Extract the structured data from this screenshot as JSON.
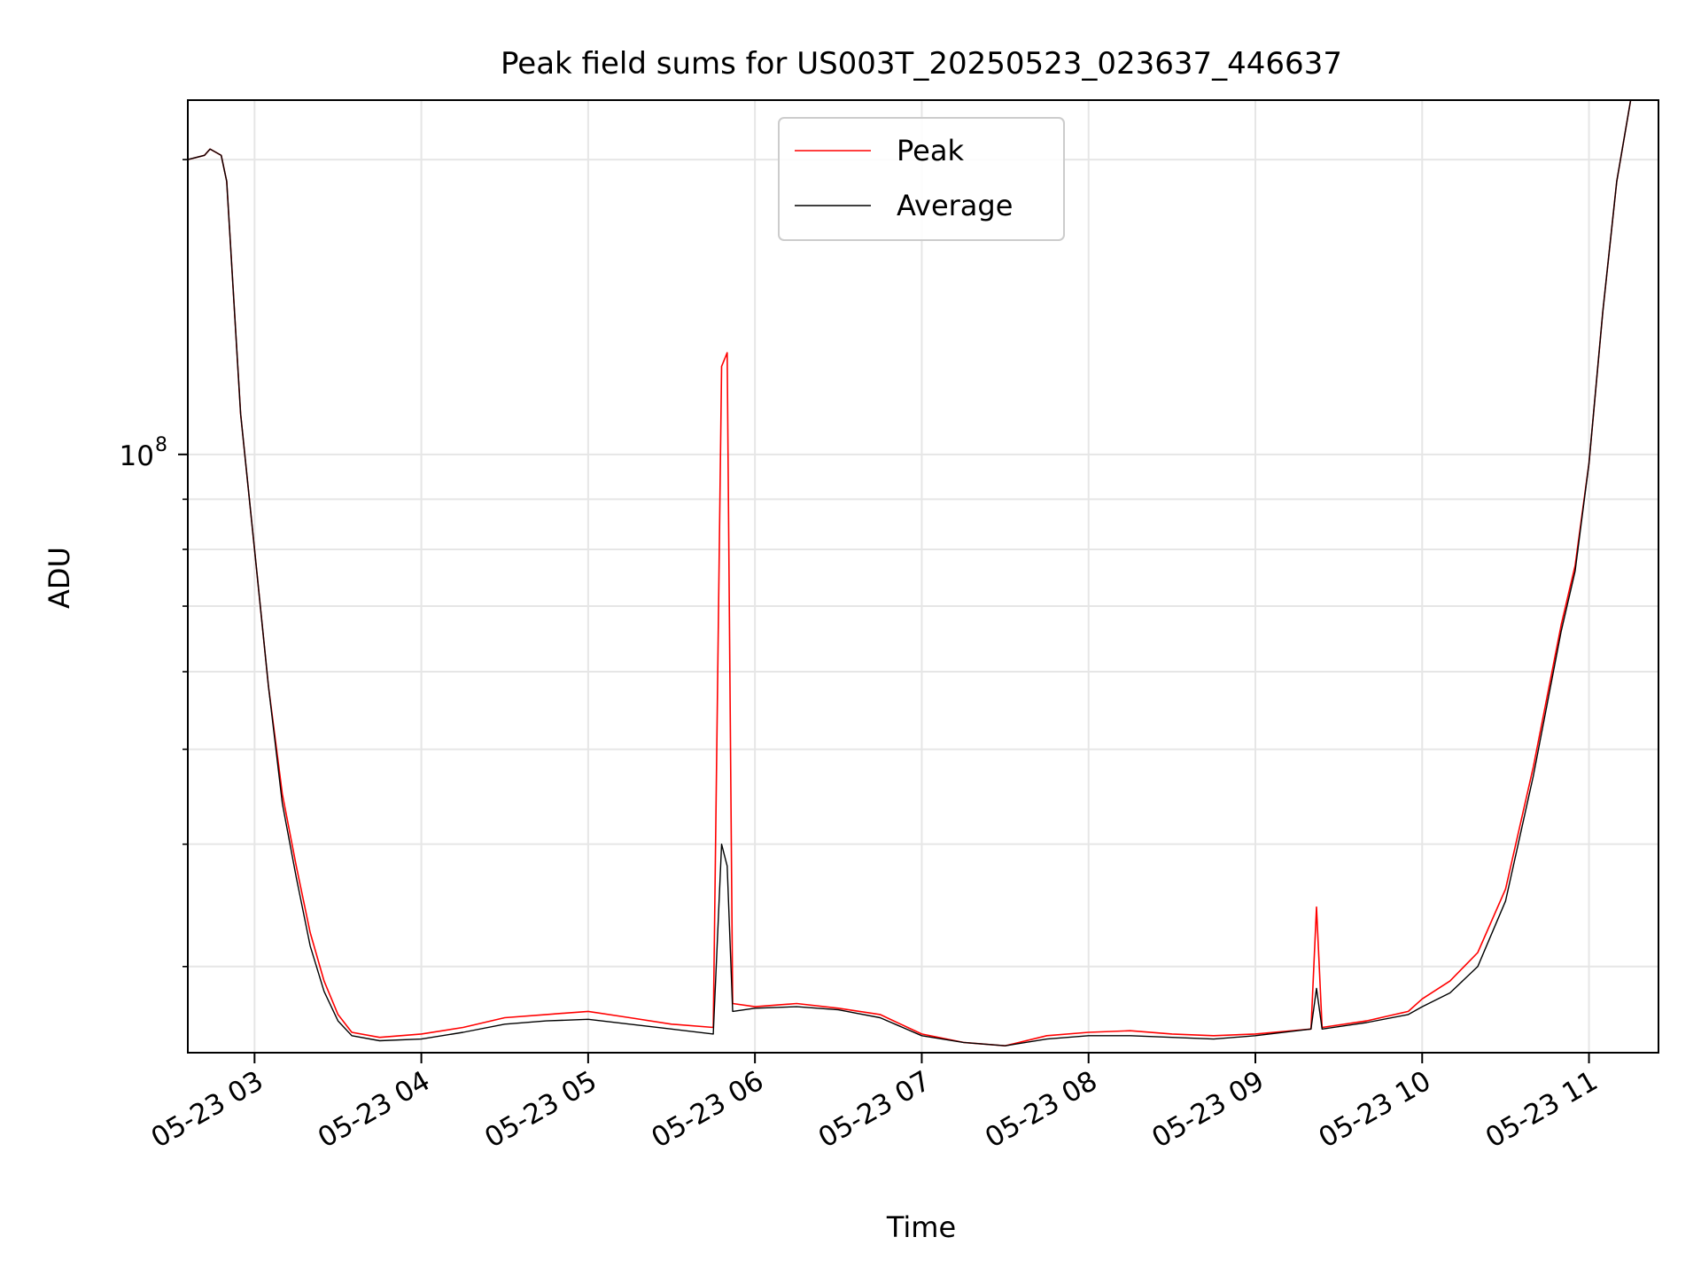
{
  "chart_data": {
    "type": "line",
    "title": "Peak field sums for US003T_20250523_023637_446637",
    "xlabel": "Time",
    "ylabel": "ADU",
    "y_scale": "log",
    "y_major_label": {
      "base": "10",
      "exp": "8",
      "value": 100000000
    },
    "y_minor_ticks": [
      30000000,
      40000000,
      50000000,
      60000000,
      70000000,
      80000000,
      90000000,
      200000000
    ],
    "ylim": [
      24500000,
      230000000
    ],
    "xlim": [
      "2025-05-23 02:36",
      "2025-05-23 11:25"
    ],
    "x_ticks": [
      {
        "value": "2025-05-23 03:00",
        "label": "05-23 03"
      },
      {
        "value": "2025-05-23 04:00",
        "label": "05-23 04"
      },
      {
        "value": "2025-05-23 05:00",
        "label": "05-23 05"
      },
      {
        "value": "2025-05-23 06:00",
        "label": "05-23 06"
      },
      {
        "value": "2025-05-23 07:00",
        "label": "05-23 07"
      },
      {
        "value": "2025-05-23 08:00",
        "label": "05-23 08"
      },
      {
        "value": "2025-05-23 09:00",
        "label": "05-23 09"
      },
      {
        "value": "2025-05-23 10:00",
        "label": "05-23 10"
      },
      {
        "value": "2025-05-23 11:00",
        "label": "05-23 11"
      }
    ],
    "grid": true,
    "legend_position": "upper center",
    "series": [
      {
        "name": "Peak",
        "color": "#ff0000",
        "points": [
          [
            "2025-05-23 02:36",
            200000000
          ],
          [
            "2025-05-23 02:42",
            202000000
          ],
          [
            "2025-05-23 02:44",
            205000000
          ],
          [
            "2025-05-23 02:48",
            202000000
          ],
          [
            "2025-05-23 02:50",
            190000000
          ],
          [
            "2025-05-23 02:55",
            110000000
          ],
          [
            "2025-05-23 03:00",
            80000000
          ],
          [
            "2025-05-23 03:05",
            58000000
          ],
          [
            "2025-05-23 03:10",
            45000000
          ],
          [
            "2025-05-23 03:15",
            38000000
          ],
          [
            "2025-05-23 03:20",
            32500000
          ],
          [
            "2025-05-23 03:25",
            29000000
          ],
          [
            "2025-05-23 03:30",
            26800000
          ],
          [
            "2025-05-23 03:35",
            25700000
          ],
          [
            "2025-05-23 03:45",
            25400000
          ],
          [
            "2025-05-23 04:00",
            25600000
          ],
          [
            "2025-05-23 04:15",
            26000000
          ],
          [
            "2025-05-23 04:30",
            26600000
          ],
          [
            "2025-05-23 04:45",
            26800000
          ],
          [
            "2025-05-23 05:00",
            27000000
          ],
          [
            "2025-05-23 05:15",
            26600000
          ],
          [
            "2025-05-23 05:30",
            26200000
          ],
          [
            "2025-05-23 05:45",
            26000000
          ],
          [
            "2025-05-23 05:48",
            123000000
          ],
          [
            "2025-05-23 05:50",
            127000000
          ],
          [
            "2025-05-23 05:52",
            27500000
          ],
          [
            "2025-05-23 06:00",
            27300000
          ],
          [
            "2025-05-23 06:15",
            27500000
          ],
          [
            "2025-05-23 06:30",
            27200000
          ],
          [
            "2025-05-23 06:45",
            26800000
          ],
          [
            "2025-05-23 07:00",
            25600000
          ],
          [
            "2025-05-23 07:15",
            25100000
          ],
          [
            "2025-05-23 07:30",
            24900000
          ],
          [
            "2025-05-23 07:45",
            25500000
          ],
          [
            "2025-05-23 08:00",
            25700000
          ],
          [
            "2025-05-23 08:15",
            25800000
          ],
          [
            "2025-05-23 08:30",
            25600000
          ],
          [
            "2025-05-23 08:45",
            25500000
          ],
          [
            "2025-05-23 09:00",
            25600000
          ],
          [
            "2025-05-23 09:20",
            25900000
          ],
          [
            "2025-05-23 09:22",
            34500000
          ],
          [
            "2025-05-23 09:24",
            26000000
          ],
          [
            "2025-05-23 09:40",
            26400000
          ],
          [
            "2025-05-23 09:55",
            27000000
          ],
          [
            "2025-05-23 10:00",
            27800000
          ],
          [
            "2025-05-23 10:10",
            29000000
          ],
          [
            "2025-05-23 10:20",
            31000000
          ],
          [
            "2025-05-23 10:30",
            36000000
          ],
          [
            "2025-05-23 10:40",
            48000000
          ],
          [
            "2025-05-23 10:50",
            67000000
          ],
          [
            "2025-05-23 10:55",
            77000000
          ],
          [
            "2025-05-23 11:00",
            98000000
          ],
          [
            "2025-05-23 11:05",
            140000000
          ],
          [
            "2025-05-23 11:10",
            190000000
          ],
          [
            "2025-05-23 11:15",
            230000000
          ]
        ]
      },
      {
        "name": "Average",
        "color": "#000000",
        "points": [
          [
            "2025-05-23 02:36",
            200000000
          ],
          [
            "2025-05-23 02:42",
            202000000
          ],
          [
            "2025-05-23 02:44",
            205000000
          ],
          [
            "2025-05-23 02:48",
            202000000
          ],
          [
            "2025-05-23 02:50",
            190000000
          ],
          [
            "2025-05-23 02:55",
            110000000
          ],
          [
            "2025-05-23 03:00",
            80000000
          ],
          [
            "2025-05-23 03:05",
            58000000
          ],
          [
            "2025-05-23 03:10",
            44000000
          ],
          [
            "2025-05-23 03:15",
            37000000
          ],
          [
            "2025-05-23 03:20",
            31500000
          ],
          [
            "2025-05-23 03:25",
            28300000
          ],
          [
            "2025-05-23 03:30",
            26400000
          ],
          [
            "2025-05-23 03:35",
            25500000
          ],
          [
            "2025-05-23 03:45",
            25200000
          ],
          [
            "2025-05-23 04:00",
            25300000
          ],
          [
            "2025-05-23 04:15",
            25700000
          ],
          [
            "2025-05-23 04:30",
            26200000
          ],
          [
            "2025-05-23 04:45",
            26400000
          ],
          [
            "2025-05-23 05:00",
            26500000
          ],
          [
            "2025-05-23 05:15",
            26200000
          ],
          [
            "2025-05-23 05:30",
            25900000
          ],
          [
            "2025-05-23 05:45",
            25600000
          ],
          [
            "2025-05-23 05:48",
            40000000
          ],
          [
            "2025-05-23 05:50",
            38000000
          ],
          [
            "2025-05-23 05:52",
            27000000
          ],
          [
            "2025-05-23 06:00",
            27200000
          ],
          [
            "2025-05-23 06:15",
            27300000
          ],
          [
            "2025-05-23 06:30",
            27100000
          ],
          [
            "2025-05-23 06:45",
            26600000
          ],
          [
            "2025-05-23 07:00",
            25500000
          ],
          [
            "2025-05-23 07:15",
            25100000
          ],
          [
            "2025-05-23 07:30",
            24900000
          ],
          [
            "2025-05-23 07:45",
            25300000
          ],
          [
            "2025-05-23 08:00",
            25500000
          ],
          [
            "2025-05-23 08:15",
            25500000
          ],
          [
            "2025-05-23 08:30",
            25400000
          ],
          [
            "2025-05-23 08:45",
            25300000
          ],
          [
            "2025-05-23 09:00",
            25500000
          ],
          [
            "2025-05-23 09:20",
            25900000
          ],
          [
            "2025-05-23 09:22",
            28500000
          ],
          [
            "2025-05-23 09:24",
            25900000
          ],
          [
            "2025-05-23 09:40",
            26300000
          ],
          [
            "2025-05-23 09:55",
            26800000
          ],
          [
            "2025-05-23 10:00",
            27300000
          ],
          [
            "2025-05-23 10:10",
            28200000
          ],
          [
            "2025-05-23 10:20",
            30000000
          ],
          [
            "2025-05-23 10:30",
            35000000
          ],
          [
            "2025-05-23 10:40",
            47000000
          ],
          [
            "2025-05-23 10:50",
            66000000
          ],
          [
            "2025-05-23 10:55",
            76000000
          ],
          [
            "2025-05-23 11:00",
            98000000
          ],
          [
            "2025-05-23 11:05",
            140000000
          ],
          [
            "2025-05-23 11:10",
            190000000
          ],
          [
            "2025-05-23 11:15",
            230000000
          ]
        ]
      }
    ]
  }
}
